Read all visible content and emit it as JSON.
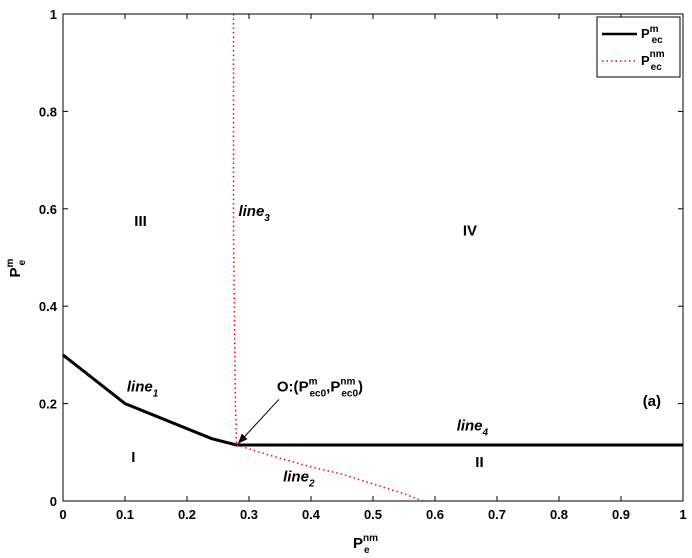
{
  "chart_data": {
    "type": "line",
    "xlim": [
      0,
      1
    ],
    "ylim": [
      0,
      1
    ],
    "grid": false,
    "legend_position": "top-right",
    "x_ticks": [
      "0",
      "0.1",
      "0.2",
      "0.3",
      "0.4",
      "0.5",
      "0.6",
      "0.7",
      "0.8",
      "0.9",
      "1"
    ],
    "y_ticks": [
      "0",
      "0.2",
      "0.4",
      "0.6",
      "0.8",
      "1"
    ],
    "x_ticks_values": [
      0,
      0.1,
      0.2,
      0.3,
      0.4,
      0.5,
      0.6,
      0.7,
      0.8,
      0.9,
      1
    ],
    "y_ticks_values": [
      0,
      0.2,
      0.4,
      0.6,
      0.8,
      1
    ],
    "xlabel": {
      "base": "P",
      "sup": "nm",
      "sub": "e"
    },
    "ylabel": {
      "base": "P",
      "sup": "m",
      "sub": "e"
    },
    "series": [
      {
        "legend": {
          "base": "P",
          "sup": "m",
          "sub": "ec"
        },
        "color": "#000000",
        "style": "solid",
        "points": [
          [
            0,
            0.3
          ],
          [
            0.1,
            0.2
          ],
          [
            0.24,
            0.128
          ],
          [
            0.28,
            0.115
          ],
          [
            1.0,
            0.115
          ]
        ]
      },
      {
        "legend": {
          "base": "P",
          "sup": "nm",
          "sub": "ec"
        },
        "color": "#ff0000",
        "style": "dotted",
        "points": [
          [
            0.275,
            1.0
          ],
          [
            0.275,
            0.55
          ],
          [
            0.278,
            0.2
          ],
          [
            0.28,
            0.115
          ]
        ]
      },
      {
        "color": "#ff0000",
        "style": "dotted",
        "points": [
          [
            0.28,
            0.115
          ],
          [
            0.33,
            0.095
          ],
          [
            0.4,
            0.07
          ],
          [
            0.45,
            0.055
          ],
          [
            0.5,
            0.035
          ],
          [
            0.55,
            0.015
          ],
          [
            0.58,
            0.0
          ]
        ]
      }
    ],
    "annotations": [
      {
        "id": "region-I",
        "text": "I",
        "x": 0.11,
        "y": 0.08
      },
      {
        "id": "region-II",
        "text": "II",
        "x": 0.665,
        "y": 0.07
      },
      {
        "id": "region-III",
        "text": "III",
        "x": 0.115,
        "y": 0.565
      },
      {
        "id": "region-IV",
        "text": "IV",
        "x": 0.645,
        "y": 0.545
      },
      {
        "id": "panel-label",
        "text": "(a)",
        "x": 0.935,
        "y": 0.195
      },
      {
        "id": "line1-label",
        "base": "line",
        "sub": "1",
        "x": 0.103,
        "y": 0.225
      },
      {
        "id": "line2-label",
        "base": "line",
        "sub": "2",
        "x": 0.355,
        "y": 0.04
      },
      {
        "id": "line3-label",
        "base": "line",
        "sub": "3",
        "x": 0.283,
        "y": 0.585
      },
      {
        "id": "line4-label",
        "base": "line",
        "sub": "4",
        "x": 0.635,
        "y": 0.145
      }
    ],
    "point_O": {
      "at": [
        0.28,
        0.115
      ],
      "text_pos": [
        0.345,
        0.225
      ],
      "prefix": "O:(",
      "p1_base": "P",
      "p1_sup": "m",
      "p1_sub": "ec0",
      "sep": ",",
      "p2_base": "P",
      "p2_sup": "nm",
      "p2_sub": "ec0",
      "suffix": ")"
    }
  }
}
